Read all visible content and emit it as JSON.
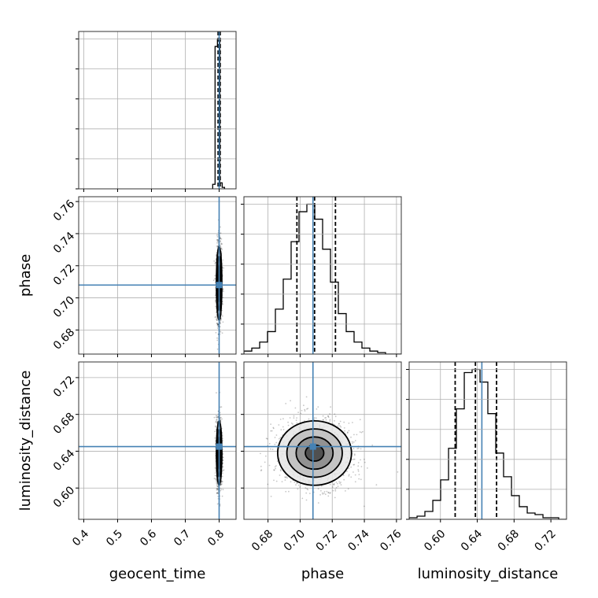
{
  "chart_data": {
    "type": "corner",
    "parameters": [
      "geocent_time",
      "phase",
      "luminosity_distance"
    ],
    "axis_labels": {
      "geocent_time": "geocent_time",
      "phase": "phase",
      "luminosity_distance": "luminosity_distance"
    },
    "ranges": {
      "geocent_time": [
        0.385,
        0.85
      ],
      "phase": [
        0.665,
        0.763
      ],
      "luminosity_distance": [
        0.566,
        0.737
      ]
    },
    "ticks": {
      "geocent_time": [
        "0.4",
        "0.5",
        "0.6",
        "0.7",
        "0.8"
      ],
      "phase": [
        "0.68",
        "0.70",
        "0.72",
        "0.74",
        "0.76"
      ],
      "luminosity_distance": [
        "0.60",
        "0.64",
        "0.68",
        "0.72"
      ]
    },
    "truths": {
      "geocent_time": 0.8,
      "phase": 0.708,
      "luminosity_distance": 0.645
    },
    "quantiles": {
      "geocent_time": [
        0.797,
        0.8,
        0.803
      ],
      "phase": [
        0.698,
        0.709,
        0.722
      ],
      "luminosity_distance": [
        0.616,
        0.638,
        0.661
      ]
    },
    "histograms": {
      "geocent_time": {
        "edges": [
          0.781,
          0.788,
          0.795,
          0.802,
          0.809,
          0.816
        ],
        "counts": [
          0.03,
          0.95,
          1.0,
          0.04,
          0.01
        ]
      },
      "phase": {
        "edges": [
          0.665,
          0.6699,
          0.6748,
          0.6797,
          0.6846,
          0.6895,
          0.6944,
          0.6993,
          0.7042,
          0.7091,
          0.714,
          0.7189,
          0.7238,
          0.7287,
          0.7336,
          0.7385,
          0.7434,
          0.7483,
          0.7532,
          0.7581,
          0.763
        ],
        "counts": [
          0.02,
          0.04,
          0.08,
          0.15,
          0.3,
          0.5,
          0.75,
          0.95,
          1.0,
          0.9,
          0.7,
          0.48,
          0.27,
          0.15,
          0.08,
          0.04,
          0.02,
          0.01,
          0.0,
          0.0
        ]
      },
      "luminosity_distance": {
        "edges": [
          0.566,
          0.5746,
          0.5831,
          0.5917,
          0.6002,
          0.6088,
          0.6173,
          0.6259,
          0.6344,
          0.643,
          0.6515,
          0.6601,
          0.6686,
          0.6772,
          0.6857,
          0.6943,
          0.7028,
          0.7114,
          0.7199,
          0.7285,
          0.737
        ],
        "counts": [
          0.01,
          0.02,
          0.05,
          0.12,
          0.25,
          0.45,
          0.7,
          0.93,
          0.95,
          0.87,
          0.67,
          0.42,
          0.27,
          0.15,
          0.08,
          0.04,
          0.03,
          0.01,
          0.01,
          0.0
        ]
      }
    },
    "correlations": {
      "phase|geocent_time": 0.0,
      "luminosity_distance|geocent_time": 0.0,
      "luminosity_distance|phase": -0.05
    },
    "sigmas": {
      "geocent_time": 0.004,
      "phase": 0.0115,
      "luminosity_distance": 0.0175
    },
    "means": {
      "geocent_time": 0.8,
      "phase": 0.709,
      "luminosity_distance": 0.638
    },
    "contour_levels_sigma": [
      0.5,
      1.0,
      1.5,
      2.0
    ],
    "colors": {
      "truth": "#4682b4",
      "hist": "#000000",
      "quantile": "#000000",
      "grid": "#b0b0b0",
      "scatter": "#000000"
    },
    "grid": true
  }
}
